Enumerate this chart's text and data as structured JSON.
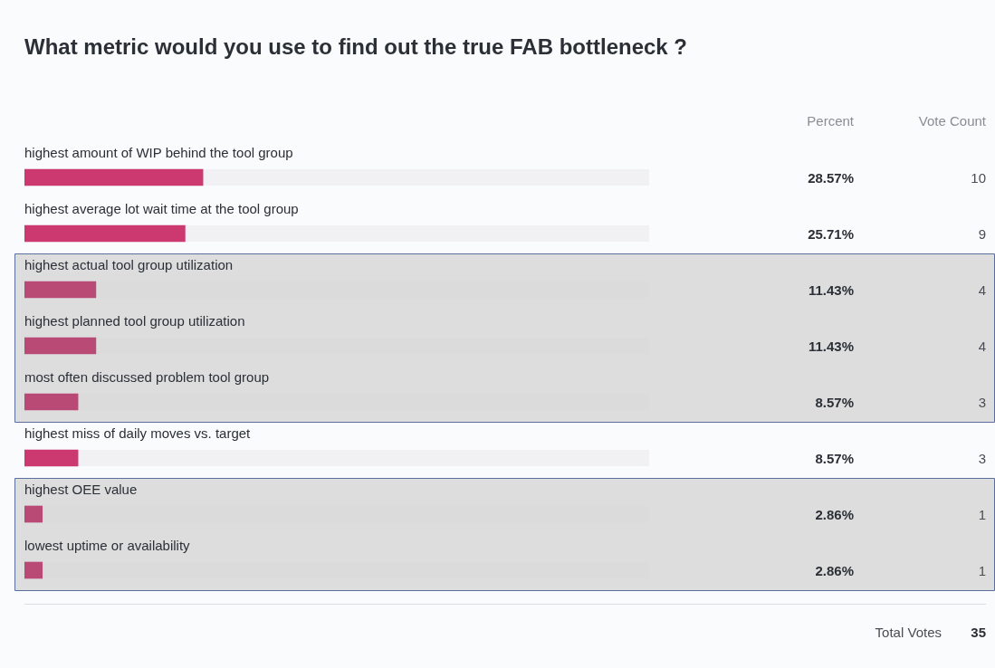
{
  "chart_data": {
    "type": "bar",
    "orientation": "horizontal",
    "title": "What metric would you use to find out the true FAB bottleneck ?",
    "categories": [
      "highest amount of WIP behind the tool group",
      "highest average lot wait time at the tool group",
      "highest actual tool group utilization",
      "highest planned tool group utilization",
      "most often discussed problem tool group",
      "highest miss of daily moves vs. target",
      "highest OEE value",
      "lowest uptime or availability"
    ],
    "values": [
      28.57,
      25.71,
      11.43,
      11.43,
      8.57,
      8.57,
      2.86,
      2.86
    ],
    "value_labels": [
      "28.57%",
      "25.71%",
      "11.43%",
      "11.43%",
      "8.57%",
      "8.57%",
      "2.86%",
      "2.86%"
    ],
    "colors": [
      "#cc3870",
      "#cc3870",
      "#b84a75",
      "#b84a75",
      "#b84a75",
      "#cc3870",
      "#b84a75",
      "#b84a75"
    ],
    "xlim": [
      0,
      100
    ],
    "bands": [
      {
        "axis": "y",
        "from": "highest actual tool group utilization",
        "to": "most often discussed problem tool group",
        "color": "#d6d6d6"
      },
      {
        "axis": "y",
        "from": "highest OEE value",
        "to": "lowest uptime or availability",
        "color": "#d6d6d6"
      }
    ],
    "annotations": [
      "Percent",
      "Vote Count",
      "Total Votes",
      "35",
      "10",
      "9",
      "4",
      "4",
      "3",
      "3",
      "1",
      "1"
    ]
  }
}
